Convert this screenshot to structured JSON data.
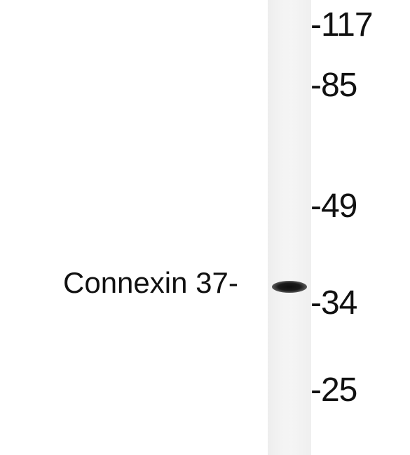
{
  "blot": {
    "protein_label": "Connexin 37-",
    "markers": [
      "-117",
      "-85",
      "-49",
      "-34",
      "-25"
    ]
  },
  "colors": {
    "background": "#ffffff",
    "lane": "#f2f2f2",
    "band": "#151515",
    "text": "#111111"
  }
}
